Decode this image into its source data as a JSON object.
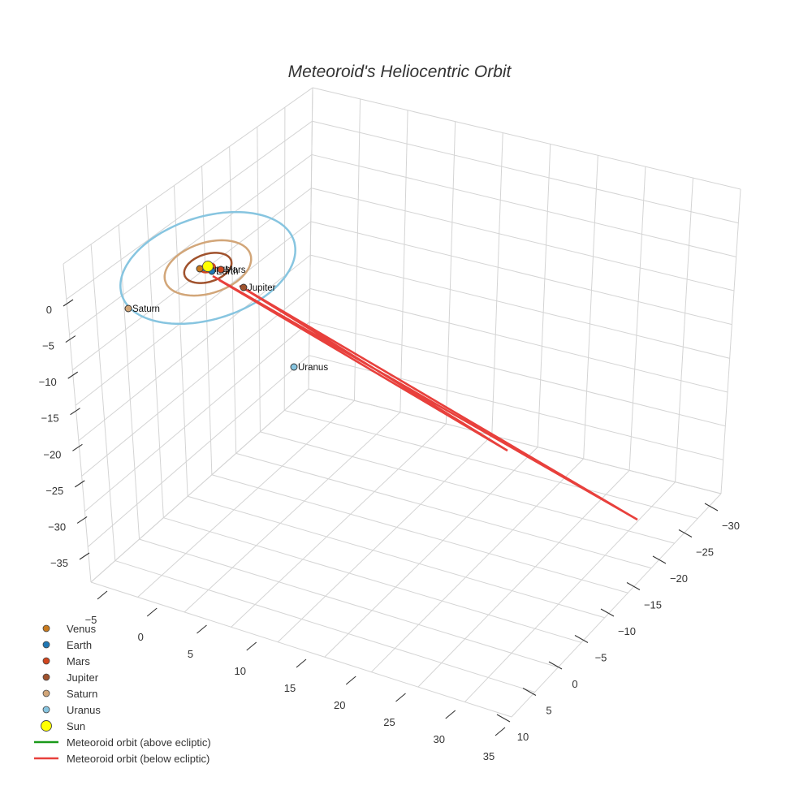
{
  "chart_data": {
    "type": "scatter3d",
    "title": "Meteoroid's Heliocentric Orbit",
    "axes": {
      "x": {
        "ticks": [
          -5,
          0,
          5,
          10,
          15,
          20,
          25,
          30,
          35
        ],
        "labels": [
          "−5",
          "0",
          "5",
          "10",
          "15",
          "20",
          "25",
          "30",
          "35"
        ]
      },
      "y": {
        "ticks": [
          -30,
          -25,
          -20,
          -15,
          -10,
          -5,
          0,
          5,
          10
        ],
        "labels": [
          "−30",
          "−25",
          "−20",
          "−15",
          "−10",
          "−5",
          "0",
          "5",
          "10"
        ]
      },
      "z": {
        "ticks": [
          0,
          -5,
          -10,
          -15,
          -20,
          -25,
          -30,
          -35
        ],
        "labels": [
          "0",
          "−5",
          "−10",
          "−15",
          "−20",
          "−25",
          "−30",
          "−35"
        ]
      }
    },
    "planets": [
      {
        "name": "Venus",
        "color": "#c87a1e",
        "orbit_radius_au": 0.72
      },
      {
        "name": "Earth",
        "color": "#1f77b4",
        "orbit_radius_au": 1.0
      },
      {
        "name": "Mars",
        "color": "#d2461e",
        "orbit_radius_au": 1.52
      },
      {
        "name": "Jupiter",
        "color": "#a0522d",
        "orbit_radius_au": 5.2
      },
      {
        "name": "Saturn",
        "color": "#d2a679",
        "orbit_radius_au": 9.5
      },
      {
        "name": "Uranus",
        "color": "#87c5e0",
        "orbit_radius_au": 19.2
      }
    ],
    "sun": {
      "name": "Sun",
      "color": "#ffff00"
    },
    "meteoroid": {
      "above_label": "Meteoroid orbit (above ecliptic)",
      "above_color": "#1a9a1a",
      "below_label": "Meteoroid orbit (below ecliptic)",
      "below_color": "#e8403c"
    },
    "legend": [
      {
        "label": "Venus",
        "symbol": "dot",
        "color": "#c87a1e"
      },
      {
        "label": "Earth",
        "symbol": "dot",
        "color": "#1f77b4"
      },
      {
        "label": "Mars",
        "symbol": "dot",
        "color": "#d2461e"
      },
      {
        "label": "Jupiter",
        "symbol": "dot",
        "color": "#a0522d"
      },
      {
        "label": "Saturn",
        "symbol": "dot",
        "color": "#d2a679"
      },
      {
        "label": "Uranus",
        "symbol": "dot",
        "color": "#87c5e0"
      },
      {
        "label": "Sun",
        "symbol": "big-dot",
        "color": "#ffff00"
      },
      {
        "label": "Meteoroid orbit (above ecliptic)",
        "symbol": "line",
        "color": "#1a9a1a"
      },
      {
        "label": "Meteoroid orbit (below ecliptic)",
        "symbol": "line",
        "color": "#e8403c"
      }
    ]
  }
}
